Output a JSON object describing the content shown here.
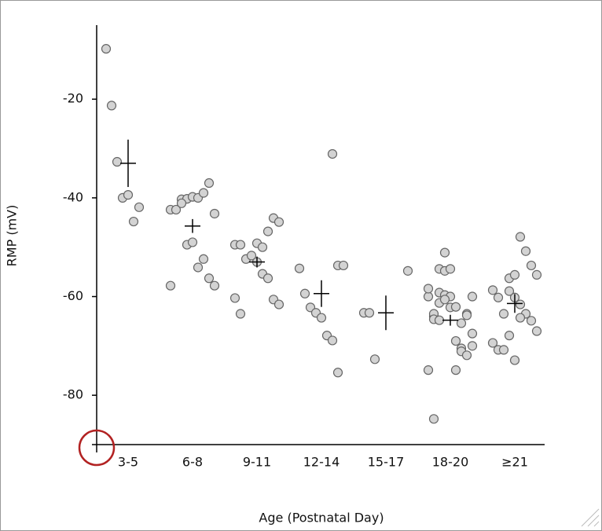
{
  "chart_data": {
    "type": "dot",
    "y_label": "RMP (mV)",
    "x_label": "Age (Postnatal Day)",
    "categories": [
      "3-5",
      "6-8",
      "9-11",
      "12-14",
      "15-17",
      "18-20",
      "≥21"
    ],
    "values": [
      [
        -9.8,
        -21.3,
        -32.7,
        -40,
        -39.4,
        -44.8,
        -41.9
      ],
      [
        -40.3,
        -40.2,
        -39.8,
        -40,
        -39,
        -37,
        -43.2,
        -42.4,
        -42.4,
        -41.1,
        -49.5,
        -49,
        -54.1,
        -52.4,
        -56.3,
        -57.8,
        -57.8
      ],
      [
        -49.2,
        -50,
        -46.8,
        -44.1,
        -44.9,
        -49.5,
        -49.5,
        -52.4,
        -51.7,
        -53,
        -55.4,
        -56.3,
        -60.6,
        -61.6,
        -60.3,
        -63.5
      ],
      [
        -31.1,
        -53.7,
        -53.7,
        -54.3,
        -59.4,
        -62.2,
        -63.3,
        -64.3,
        -67.9,
        -68.9,
        -75.4
      ],
      [
        -54.8,
        -63.3,
        -63.3,
        -72.7
      ],
      [
        -64,
        -59.2,
        -59.7,
        -60,
        -69,
        -70.5,
        -63.5,
        -60,
        -60,
        -63.5,
        -54.4,
        -54.8,
        -54.4,
        -74.9,
        -71.1,
        -71.9,
        -70,
        -74.9,
        -84.8,
        -61.3,
        -60.6,
        -62.2,
        -62.1,
        -65.4,
        -63.8,
        -67.5,
        -58.4,
        -64.6,
        -64.8,
        -51.1
      ],
      [
        -56.3,
        -55.6,
        -47.9,
        -50.8,
        -53.7,
        -55.6,
        -58.7,
        -60.2,
        -63.5,
        -58.9,
        -60.2,
        -61.6,
        -63.5,
        -64.9,
        -67,
        -69.4,
        -70.8,
        -70.8,
        -67.9,
        -72.9,
        -64.3
      ]
    ],
    "means": [
      -33,
      -45.7,
      -53,
      -59.4,
      -63.3,
      -64.8,
      -61.4
    ],
    "errors": [
      4.8,
      1.4,
      1.1,
      2.7,
      3.5,
      1.1,
      1.9
    ],
    "color": "#d3d3d3",
    "ylim": [
      -90,
      -5
    ],
    "yticks": [
      -20,
      -40,
      -60,
      -80
    ]
  }
}
